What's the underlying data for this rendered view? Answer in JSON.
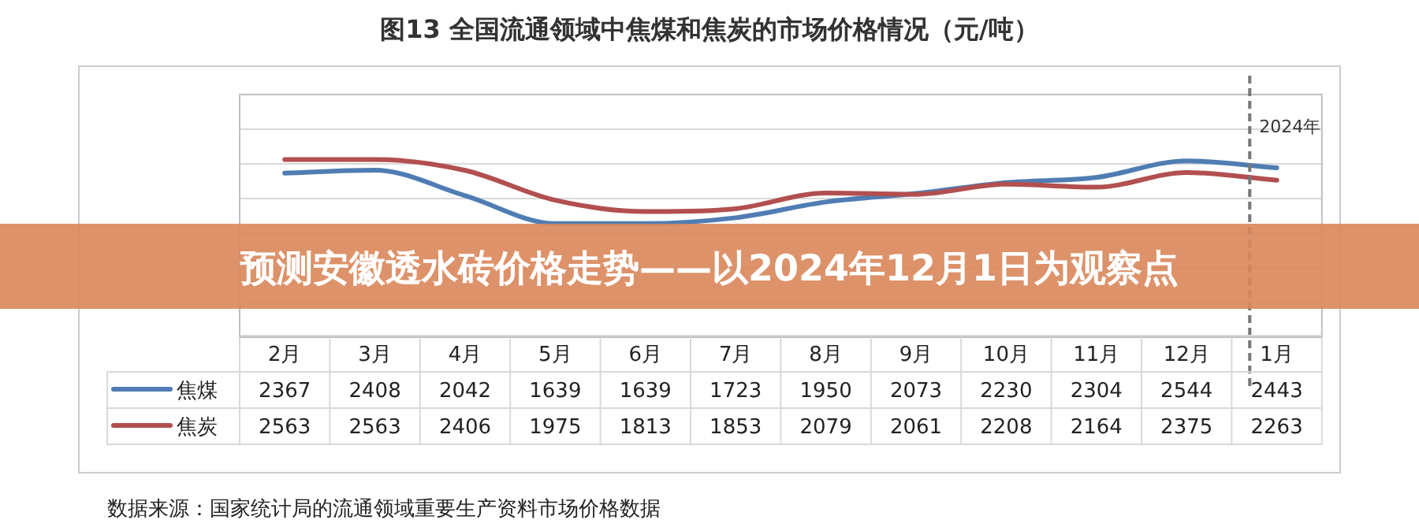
{
  "chart_data": {
    "type": "line",
    "title": "图13  全国流通领域中焦煤和焦炭的市场价格情况（元/吨）",
    "categories": [
      "2月",
      "3月",
      "4月",
      "5月",
      "6月",
      "7月",
      "8月",
      "9月",
      "10月",
      "11月",
      "12月",
      "1月"
    ],
    "series": [
      {
        "name": "焦煤",
        "color": "#4f7db3",
        "values": [
          2367,
          2408,
          2042,
          1639,
          1639,
          1723,
          1950,
          2073,
          2230,
          2304,
          2544,
          2443
        ]
      },
      {
        "name": "焦炭",
        "color": "#b24f4f",
        "values": [
          2563,
          2563,
          2406,
          1975,
          1813,
          1853,
          2079,
          2061,
          2208,
          2164,
          2375,
          2263
        ]
      }
    ],
    "ylim": [
      0,
      3500
    ],
    "grid": "y",
    "legend": "left",
    "data_labels": true,
    "marker": "none",
    "line_style": "solid",
    "tick_labels": "x",
    "ref_lines": [
      {
        "axis": "x",
        "value": "1月",
        "label": "2024年",
        "color": "#777777",
        "line_style": "dashed"
      }
    ],
    "annotations": [
      "预测安徽透水砖价格走势——以2024年12月1日为观察点",
      "数据来源：国家统计局的流通领域重要生产资料市场价格数据"
    ]
  }
}
